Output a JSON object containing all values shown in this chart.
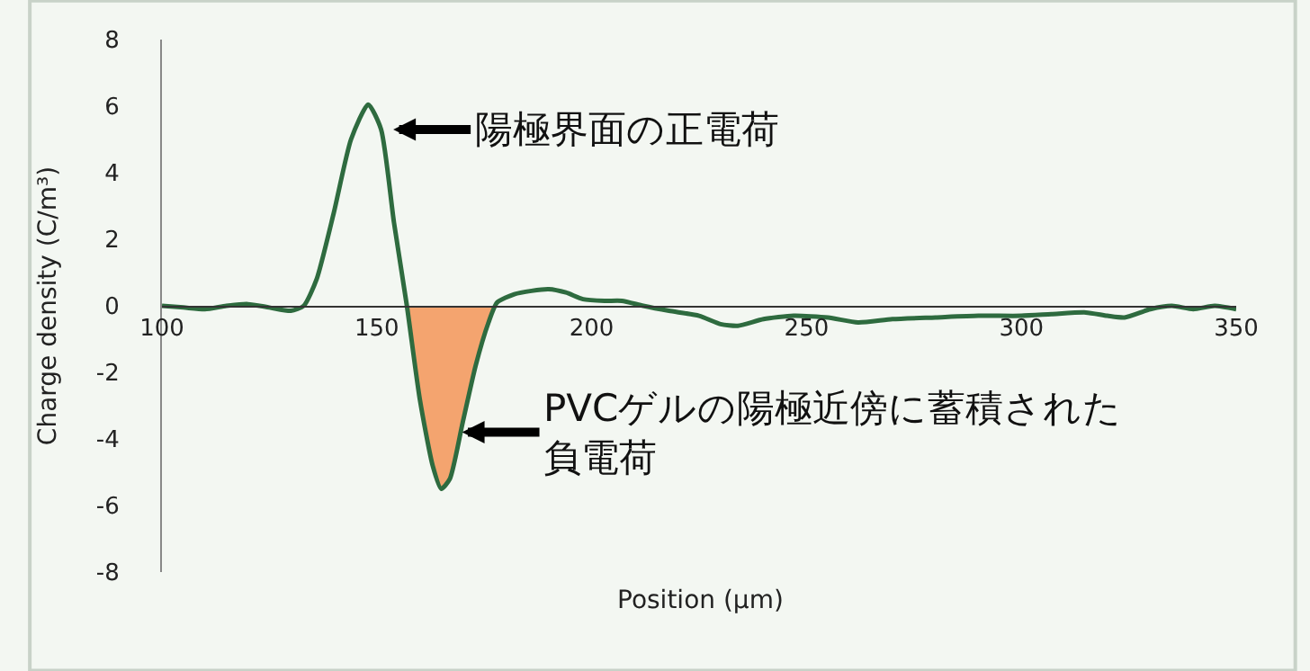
{
  "chart_data": {
    "type": "line",
    "xlabel": "Position (μm)",
    "ylabel": "Charge density (C/m³)",
    "xlim": [
      100,
      350
    ],
    "xticks": [
      100,
      150,
      200,
      250,
      300,
      350
    ],
    "ylim": [
      -8,
      8
    ],
    "yticks": [
      -8,
      -6,
      -4,
      -2,
      0,
      2,
      4,
      6,
      8
    ],
    "grid": false,
    "marker": "none",
    "line_style": "solid",
    "series": [
      {
        "type": "area",
        "color": "#f4a46f",
        "x": [
          157,
          160,
          163,
          165,
          167,
          170,
          173,
          176,
          178
        ],
        "values": [
          0,
          -2.8,
          -4.8,
          -5.5,
          -5.2,
          -3.5,
          -1.8,
          -0.5,
          0
        ]
      },
      {
        "color": "#2e6b3f",
        "x": [
          100,
          105,
          110,
          115,
          120,
          125,
          130,
          133,
          136,
          140,
          144,
          148,
          151,
          154,
          157,
          160,
          163,
          165,
          167,
          170,
          173,
          176,
          178,
          182,
          186,
          190,
          194,
          198,
          203,
          207,
          212,
          218,
          225,
          230,
          234,
          240,
          247,
          255,
          262,
          270,
          280,
          290,
          300,
          307,
          315,
          320,
          324,
          330,
          335,
          340,
          345,
          350
        ],
        "values": [
          0,
          -0.05,
          -0.1,
          0,
          0.05,
          -0.05,
          -0.15,
          0,
          0.8,
          2.8,
          5.0,
          6.05,
          5.3,
          2.5,
          0,
          -2.8,
          -4.8,
          -5.5,
          -5.2,
          -3.5,
          -1.8,
          -0.5,
          0.1,
          0.35,
          0.45,
          0.5,
          0.4,
          0.2,
          0.15,
          0.15,
          0,
          -0.15,
          -0.3,
          -0.55,
          -0.6,
          -0.4,
          -0.3,
          -0.35,
          -0.5,
          -0.4,
          -0.35,
          -0.3,
          -0.3,
          -0.25,
          -0.2,
          -0.3,
          -0.35,
          -0.1,
          0,
          -0.1,
          0,
          -0.1
        ]
      }
    ],
    "annotations": [
      {
        "text": "陽極界面の正電荷",
        "x": 153,
        "y": 5.3
      },
      {
        "text": "PVCゲルの陽極近傍に蓄積された負電荷",
        "x": 169,
        "y": -3.8
      }
    ]
  }
}
